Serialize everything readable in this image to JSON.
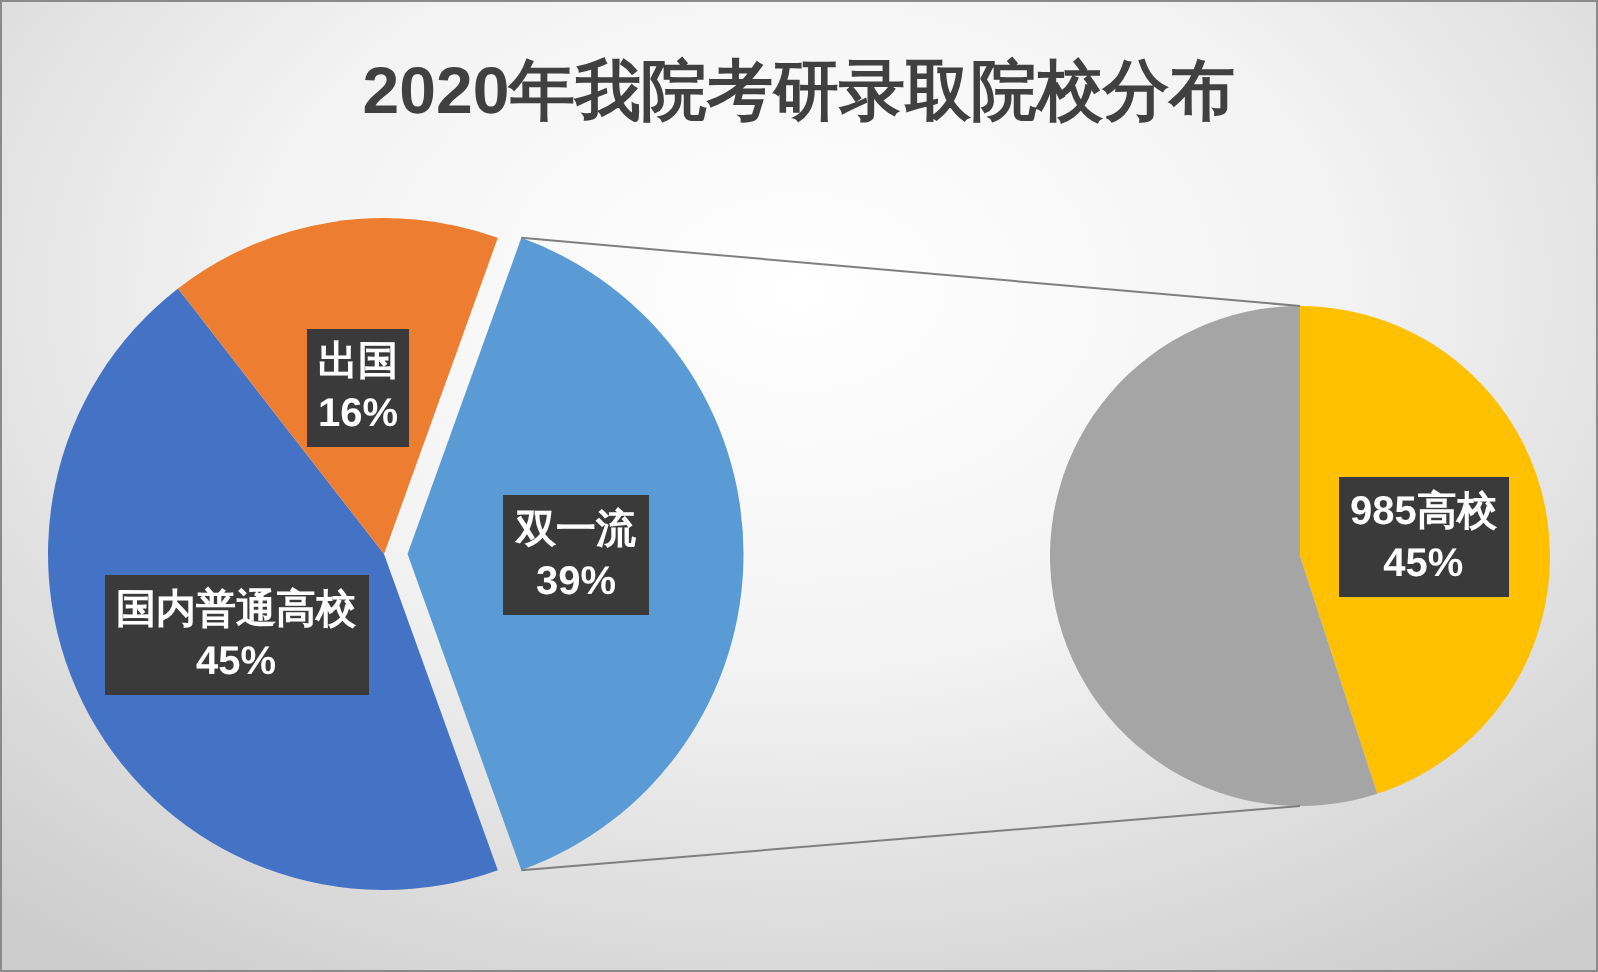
{
  "chart_data": [
    {
      "type": "pie",
      "title": "2020年我院考研录取院校分布",
      "categories": [
        "国内普通高校",
        "出国",
        "双一流"
      ],
      "values": [
        45,
        16,
        39
      ],
      "value_labels": [
        "45%",
        "16%",
        "39%"
      ],
      "colors": [
        "#4472c4",
        "#ed7d31",
        "#5b9bd5"
      ]
    },
    {
      "type": "pie",
      "categories": [
        "985高校",
        null
      ],
      "values": [
        45,
        55
      ],
      "value_labels": [
        "45%",
        null
      ],
      "colors": [
        "#ffc000",
        "#a5a5a5"
      ]
    }
  ]
}
